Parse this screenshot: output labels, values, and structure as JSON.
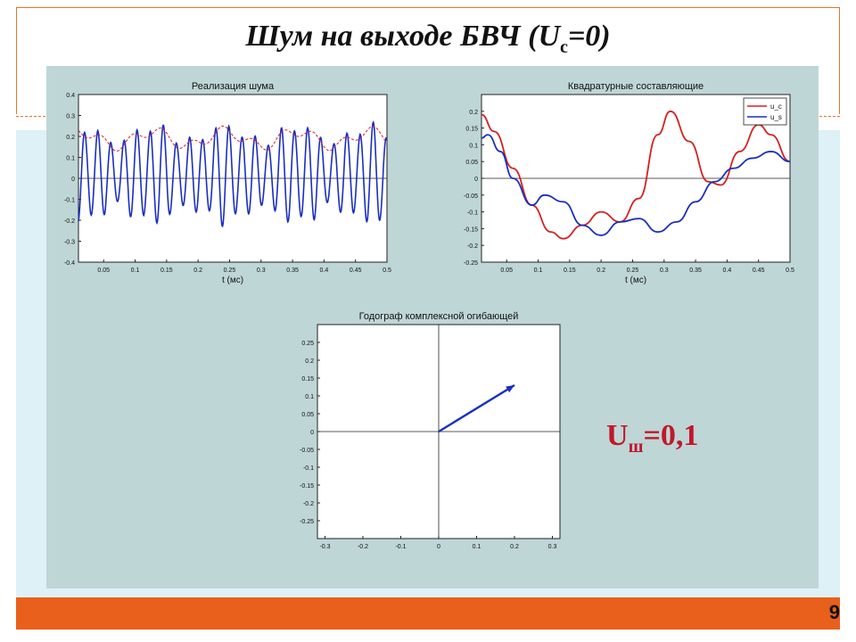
{
  "slide": {
    "title_main": "Шум на выходе БВЧ (",
    "title_var": "U",
    "title_sub": "с",
    "title_tail": "=0)",
    "page_number": "9",
    "result_var": "U",
    "result_sub": "ш",
    "result_value": "=0,1"
  },
  "colors": {
    "accent": "#e8601c",
    "panel": "#bfd6d6",
    "band": "#ddf1f6",
    "result": "#c0182a",
    "series_blue": "#1a2fc0",
    "series_red": "#d42020"
  },
  "chart_data": [
    {
      "type": "line",
      "title": "Реализация шума",
      "xlabel": "t (мс)",
      "xlim": [
        0.01,
        0.5
      ],
      "ylim": [
        -0.4,
        0.4
      ],
      "x_ticks": [
        "0.05",
        "0.1",
        "0.15",
        "0.2",
        "0.25",
        "0.3",
        "0.35",
        "0.4",
        "0.45",
        "0.5"
      ],
      "y_ticks": [
        "0.4",
        "0.3",
        "0.2",
        "0.1",
        "0",
        "-0.1",
        "-0.2",
        "-0.3",
        "-0.4"
      ],
      "series": [
        {
          "values_kind": "noise",
          "style": "solid",
          "color": "#1a2fc0"
        },
        {
          "values_kind": "envelope",
          "style": "dashed",
          "color": "#d42020"
        }
      ]
    },
    {
      "type": "line",
      "title": "Квадратурные составляющие",
      "xlabel": "t (мс)",
      "xlim": [
        0.01,
        0.5
      ],
      "ylim": [
        -0.25,
        0.25
      ],
      "x_ticks": [
        "0.05",
        "0.1",
        "0.15",
        "0.2",
        "0.25",
        "0.3",
        "0.35",
        "0.4",
        "0.45",
        "0.5"
      ],
      "y_ticks": [
        "0.2",
        "0.15",
        "0.1",
        "0.05",
        "0",
        "-0.05",
        "-0.1",
        "-0.15",
        "-0.2",
        "-0.25"
      ],
      "legend": [
        "u_c",
        "u_s"
      ],
      "legend_position": "top-right",
      "series": [
        {
          "name": "u_c",
          "color": "#d42020",
          "x": [
            0.01,
            0.03,
            0.06,
            0.09,
            0.12,
            0.14,
            0.17,
            0.2,
            0.23,
            0.26,
            0.29,
            0.31,
            0.34,
            0.37,
            0.39,
            0.42,
            0.45,
            0.47,
            0.5
          ],
          "values": [
            0.19,
            0.14,
            0.03,
            -0.08,
            -0.16,
            -0.18,
            -0.14,
            -0.1,
            -0.13,
            -0.06,
            0.13,
            0.2,
            0.11,
            -0.01,
            -0.02,
            0.08,
            0.16,
            0.13,
            0.05
          ]
        },
        {
          "name": "u_s",
          "color": "#1a2fc0",
          "x": [
            0.01,
            0.02,
            0.04,
            0.06,
            0.09,
            0.11,
            0.14,
            0.17,
            0.2,
            0.23,
            0.26,
            0.29,
            0.32,
            0.35,
            0.38,
            0.41,
            0.44,
            0.47,
            0.5
          ],
          "values": [
            0.12,
            0.13,
            0.08,
            0.0,
            -0.08,
            -0.05,
            -0.07,
            -0.14,
            -0.17,
            -0.13,
            -0.12,
            -0.16,
            -0.13,
            -0.07,
            -0.01,
            0.03,
            0.06,
            0.08,
            0.05
          ]
        }
      ]
    },
    {
      "type": "scatter",
      "title": "Годограф комплексной огибающей",
      "xlim": [
        -0.32,
        0.32
      ],
      "ylim": [
        -0.3,
        0.3
      ],
      "x_ticks": [
        "-0.3",
        "-0.2",
        "-0.1",
        "0",
        "0.1",
        "0.2",
        "0.3"
      ],
      "y_ticks": [
        "0.25",
        "0.2",
        "0.15",
        "0.1",
        "0.05",
        "0",
        "-0.05",
        "-0.1",
        "-0.15",
        "-0.2",
        "-0.25"
      ],
      "vector": {
        "x": 0.2,
        "y": 0.13,
        "color": "#1a2fc0"
      }
    }
  ]
}
